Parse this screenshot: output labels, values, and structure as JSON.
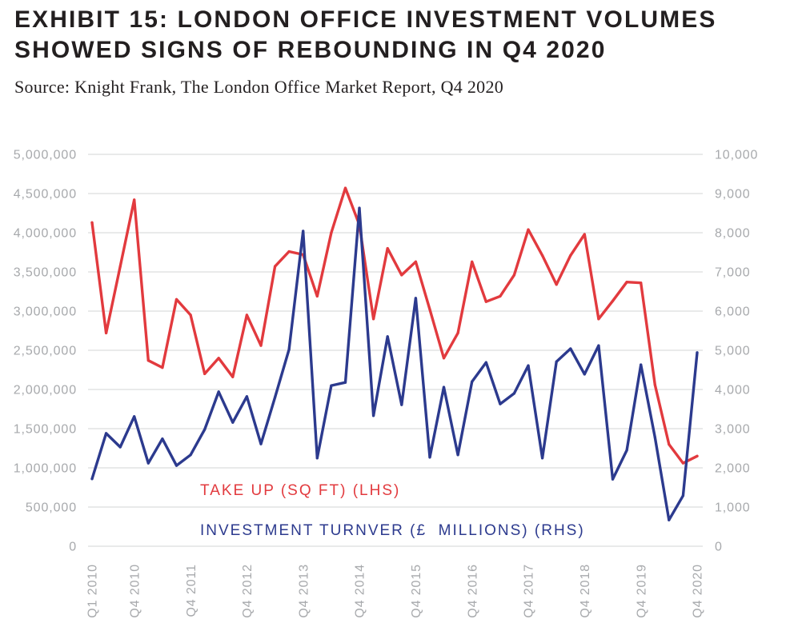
{
  "colors": {
    "title": "#231f20",
    "grid": "#d3d4d6",
    "tick_text": "#a7a9ac",
    "take_up": "#e23a3e",
    "investment": "#2c3a8e"
  },
  "chart_data": {
    "type": "line",
    "title": "EXHIBIT 15: LONDON OFFICE INVESTMENT VOLUMES SHOWED SIGNS OF REBOUNDING IN Q4 2020",
    "subtitle": "Source: Knight Frank, The London Office Market Report, Q4 2020",
    "grid": true,
    "legend_position": "bottom-left",
    "categories": [
      "Q1 2010",
      "",
      "",
      "Q4 2010",
      "",
      "",
      "",
      "Q4 2011",
      "",
      "",
      "",
      "Q4 2012",
      "",
      "",
      "",
      "Q4 2013",
      "",
      "",
      "",
      "Q4 2014",
      "",
      "",
      "",
      "Q4 2015",
      "",
      "",
      "",
      "Q4 2016",
      "",
      "",
      "",
      "Q4 2017",
      "",
      "",
      "",
      "Q4 2018",
      "",
      "",
      "",
      "Q4 2019",
      "",
      "",
      "",
      "Q4 2020"
    ],
    "y_left": {
      "ylim": [
        0,
        5000000
      ],
      "ticks": [
        "0",
        "500,000",
        "1,000,000",
        "1,500,000",
        "2,000,000",
        "2,500,000",
        "3,000,000",
        "3,500,000",
        "4,000,000",
        "4,500,000",
        "5,000,000"
      ]
    },
    "y_right": {
      "ylim": [
        0,
        10000
      ],
      "ticks": [
        "0",
        "1,000",
        "2,000",
        "3,000",
        "4,000",
        "5,000",
        "6,000",
        "7,000",
        "8,000",
        "9,000",
        "10,000"
      ]
    },
    "series": [
      {
        "name": "TAKE UP (SQ FT) (LHS)",
        "axis": "left",
        "color": "#e23a3e",
        "values": [
          4130000,
          2720000,
          3570000,
          4420000,
          2370000,
          2280000,
          3150000,
          2950000,
          2200000,
          2400000,
          2160000,
          2950000,
          2560000,
          3570000,
          3760000,
          3720000,
          3190000,
          4000000,
          4570000,
          4100000,
          2900000,
          3800000,
          3460000,
          3630000,
          3020000,
          2400000,
          2720000,
          3630000,
          3120000,
          3190000,
          3460000,
          4040000,
          3710000,
          3340000,
          3710000,
          3980000,
          2900000,
          3130000,
          3370000,
          3360000,
          2060000,
          1300000,
          1060000,
          1150000
        ]
      },
      {
        "name": "INVESTMENT TURNVER (£  MILLIONS) (RHS)",
        "axis": "right",
        "color": "#2c3a8e",
        "values": [
          1720,
          2880,
          2530,
          3310,
          2120,
          2740,
          2060,
          2330,
          2980,
          3940,
          3160,
          3820,
          2610,
          3800,
          5020,
          8040,
          2250,
          4100,
          4180,
          8630,
          3330,
          5350,
          3610,
          6330,
          2270,
          4060,
          2330,
          4200,
          4690,
          3630,
          3900,
          4610,
          2250,
          4710,
          5040,
          4390,
          5120,
          1710,
          2450,
          4630,
          2780,
          670,
          1290,
          4940
        ]
      }
    ]
  }
}
